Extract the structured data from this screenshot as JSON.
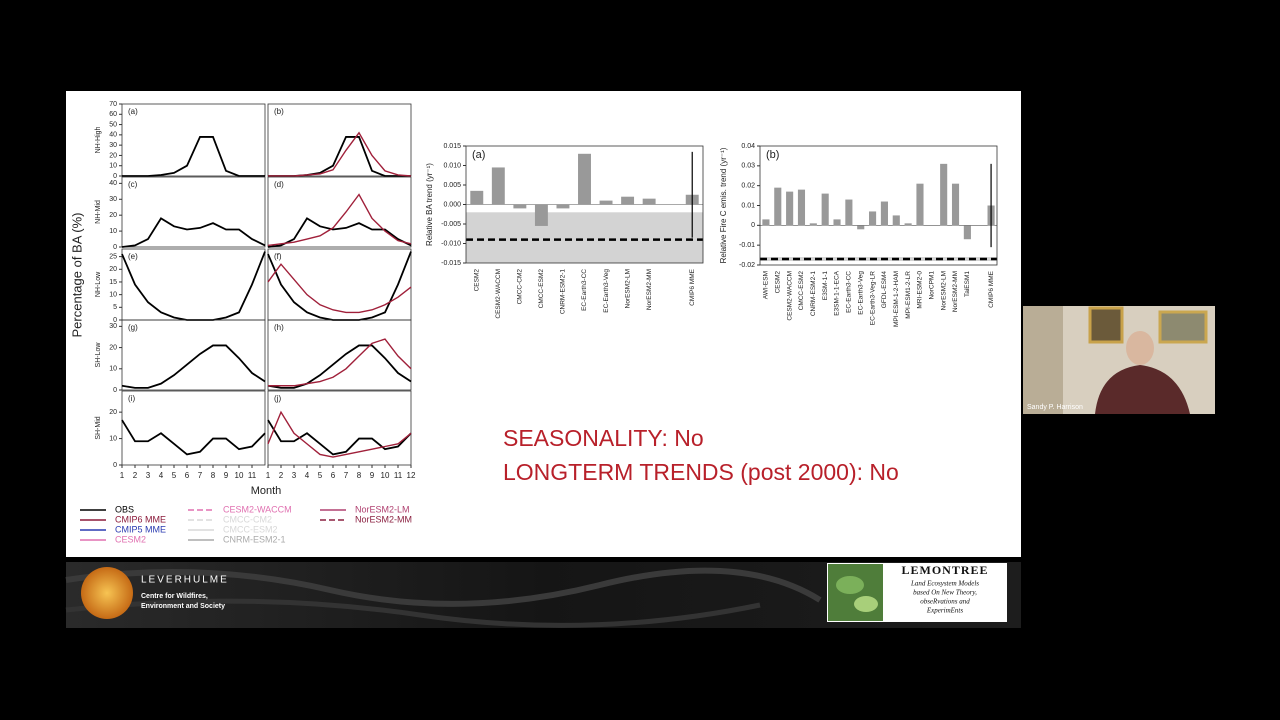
{
  "chart_data": [
    {
      "type": "line",
      "title": "(a)",
      "x": [
        1,
        2,
        3,
        4,
        5,
        6,
        7,
        8,
        9,
        10,
        11,
        12
      ],
      "xlim": [
        1,
        12
      ],
      "ylim": [
        0,
        70
      ],
      "yticks": [
        0,
        10,
        20,
        30,
        40,
        50,
        60,
        70
      ],
      "series": [
        {
          "color": "#000000",
          "values": [
            0,
            0,
            0,
            1,
            3,
            10,
            38,
            38,
            5,
            0,
            0,
            0
          ]
        }
      ]
    },
    {
      "type": "line",
      "title": "(b)",
      "x": [
        1,
        2,
        3,
        4,
        5,
        6,
        7,
        8,
        9,
        10,
        11,
        12
      ],
      "xlim": [
        1,
        12
      ],
      "ylim": [
        0,
        70
      ],
      "series": [
        {
          "color": "#000000",
          "values": [
            0,
            0,
            0,
            1,
            3,
            10,
            38,
            38,
            5,
            0,
            0,
            0
          ]
        },
        {
          "color": "#a0203a",
          "values": [
            0,
            0,
            0,
            1,
            2,
            6,
            25,
            42,
            20,
            5,
            1,
            0
          ]
        }
      ]
    },
    {
      "type": "line",
      "title": "(c)",
      "x": [
        1,
        2,
        3,
        4,
        5,
        6,
        7,
        8,
        9,
        10,
        11,
        12
      ],
      "xlim": [
        1,
        12
      ],
      "ylim": [
        0,
        44
      ],
      "yticks": [
        0,
        10,
        20,
        30,
        40
      ],
      "series": [
        {
          "color": "#000000",
          "values": [
            0,
            1,
            5,
            18,
            13,
            11,
            12,
            15,
            11,
            11,
            5,
            1
          ]
        }
      ]
    },
    {
      "type": "line",
      "title": "(d)",
      "x": [
        1,
        2,
        3,
        4,
        5,
        6,
        7,
        8,
        9,
        10,
        11,
        12
      ],
      "xlim": [
        1,
        12
      ],
      "ylim": [
        0,
        44
      ],
      "series": [
        {
          "color": "#000000",
          "values": [
            0,
            1,
            5,
            18,
            13,
            11,
            12,
            15,
            11,
            11,
            5,
            1
          ]
        },
        {
          "color": "#a0203a",
          "values": [
            1,
            2,
            3,
            5,
            7,
            12,
            22,
            33,
            18,
            10,
            4,
            2
          ]
        }
      ]
    },
    {
      "type": "line",
      "title": "(e)",
      "x": [
        1,
        2,
        3,
        4,
        5,
        6,
        7,
        8,
        9,
        10,
        11,
        12
      ],
      "xlim": [
        1,
        12
      ],
      "ylim": [
        0,
        28
      ],
      "yticks": [
        0,
        5,
        10,
        15,
        20,
        25
      ],
      "series": [
        {
          "color": "#000000",
          "values": [
            26,
            14,
            7,
            3,
            1,
            0,
            0,
            0,
            1,
            3,
            14,
            27
          ]
        }
      ]
    },
    {
      "type": "line",
      "title": "(f)",
      "x": [
        1,
        2,
        3,
        4,
        5,
        6,
        7,
        8,
        9,
        10,
        11,
        12
      ],
      "xlim": [
        1,
        12
      ],
      "ylim": [
        0,
        28
      ],
      "series": [
        {
          "color": "#000000",
          "values": [
            26,
            14,
            7,
            3,
            1,
            0,
            0,
            0,
            1,
            3,
            14,
            27
          ]
        },
        {
          "color": "#a0203a",
          "values": [
            15,
            22,
            16,
            10,
            6,
            4,
            3,
            3,
            4,
            6,
            9,
            13
          ]
        }
      ]
    },
    {
      "type": "line",
      "title": "(g)",
      "x": [
        1,
        2,
        3,
        4,
        5,
        6,
        7,
        8,
        9,
        10,
        11,
        12
      ],
      "xlim": [
        1,
        12
      ],
      "ylim": [
        0,
        33
      ],
      "yticks": [
        0,
        10,
        20,
        30
      ],
      "series": [
        {
          "color": "#000000",
          "values": [
            2,
            1,
            1,
            3,
            7,
            12,
            17,
            21,
            21,
            15,
            8,
            4
          ]
        }
      ]
    },
    {
      "type": "line",
      "title": "(h)",
      "x": [
        1,
        2,
        3,
        4,
        5,
        6,
        7,
        8,
        9,
        10,
        11,
        12
      ],
      "xlim": [
        1,
        12
      ],
      "ylim": [
        0,
        33
      ],
      "series": [
        {
          "color": "#000000",
          "values": [
            2,
            1,
            1,
            3,
            7,
            12,
            17,
            21,
            21,
            15,
            8,
            4
          ]
        },
        {
          "color": "#a0203a",
          "values": [
            2,
            2,
            2,
            3,
            4,
            6,
            10,
            16,
            22,
            24,
            16,
            10
          ]
        }
      ]
    },
    {
      "type": "line",
      "title": "(i)",
      "x": [
        1,
        2,
        3,
        4,
        5,
        6,
        7,
        8,
        9,
        10,
        11,
        12
      ],
      "xlim": [
        1,
        12
      ],
      "ylim": [
        0,
        28
      ],
      "yticks": [
        0,
        10,
        20
      ],
      "xticks": [
        1,
        2,
        3,
        4,
        5,
        6,
        7,
        8,
        9,
        10,
        11
      ],
      "series": [
        {
          "color": "#000000",
          "values": [
            17,
            9,
            9,
            12,
            8,
            4,
            5,
            10,
            10,
            6,
            7,
            12
          ]
        }
      ]
    },
    {
      "type": "line",
      "title": "(j)",
      "x": [
        1,
        2,
        3,
        4,
        5,
        6,
        7,
        8,
        9,
        10,
        11,
        12
      ],
      "xlim": [
        1,
        12
      ],
      "ylim": [
        0,
        28
      ],
      "xticks": [
        1,
        2,
        3,
        4,
        5,
        6,
        7,
        8,
        9,
        10,
        11,
        12
      ],
      "series": [
        {
          "color": "#000000",
          "values": [
            17,
            9,
            9,
            12,
            8,
            4,
            5,
            10,
            10,
            6,
            7,
            12
          ]
        },
        {
          "color": "#a0203a",
          "values": [
            8,
            20,
            12,
            8,
            4,
            3,
            4,
            5,
            6,
            7,
            8,
            12
          ]
        }
      ]
    },
    {
      "type": "bar",
      "title": "(a)",
      "y_label": "Relative BA trend (yr⁻¹)",
      "color": "#999999",
      "categories": [
        "CESM2",
        "CESM2-WACCM",
        "CMCC-CM2",
        "CMCC-ESM2",
        "CNRM-ESM2-1",
        "EC-Earth3-CC",
        "EC-Earth3-Veg",
        "NorESM2-LM",
        "NorESM2-MM",
        null,
        "CMIP6 MME"
      ],
      "values": [
        0.0035,
        0.0095,
        -0.001,
        -0.0055,
        -0.001,
        0.013,
        0.001,
        0.002,
        0.0015,
        null,
        0.0025
      ],
      "errors": [
        null,
        null,
        null,
        null,
        null,
        null,
        null,
        null,
        null,
        null,
        0.011
      ],
      "obs_trend": -0.009,
      "obs_range": [
        -0.015,
        -0.002
      ],
      "ylim": [
        -0.015,
        0.015
      ],
      "yticks": [
        -0.015,
        {
          "value": -0.01,
          "label": "-0.010"
        },
        -0.005,
        {
          "value": 0,
          "label": "0.000"
        },
        0.005,
        {
          "value": 0.01,
          "label": "0.010"
        },
        0.015
      ]
    },
    {
      "type": "bar",
      "title": "(b)",
      "y_label": "Relative Fire C emis. trend (yr⁻¹)",
      "color": "#999999",
      "categories": [
        "AWI-ESM",
        "CESM2",
        "CESM2-WACCM",
        "CMCC-ESM2",
        "CNRM-ESM2-1",
        "E3SM-1-1",
        "E3SM-1-1-ECA",
        "EC-Earth3-CC",
        "EC-Earth3-Veg",
        "EC-Earth3-Veg-LR",
        "GFDL-ESM4",
        "MPI-ESM-1-2-HAM",
        "MPI-ESM1-2-LR",
        "MRI-ESM2-0",
        "NorCPM1",
        "NorESM2-LM",
        "NorESM2-MM",
        "TaiESM1",
        null,
        "CMIP6 MME"
      ],
      "values": [
        0.003,
        0.019,
        0.017,
        0.018,
        0.001,
        0.016,
        0.003,
        0.013,
        -0.002,
        0.007,
        0.012,
        0.005,
        0.001,
        0.021,
        0,
        0.031,
        0.021,
        -0.007,
        null,
        0.01
      ],
      "errors": [
        null,
        null,
        null,
        null,
        null,
        null,
        null,
        null,
        null,
        null,
        null,
        null,
        null,
        null,
        null,
        null,
        null,
        null,
        null,
        0.021
      ],
      "obs_trend": -0.017,
      "obs_range": [
        -0.018,
        -0.016
      ],
      "ylim": [
        -0.02,
        0.04
      ],
      "yticks": [
        -0.02,
        -0.01,
        0,
        0.01,
        0.02,
        0.03,
        0.04
      ]
    }
  ],
  "seasonal": {
    "y_label": "Percentage of BA (%)",
    "x_label": "Month",
    "rows": [
      "NH-High",
      "NH-Mid",
      "NH-Low",
      "SH-Low",
      "SH-Mid"
    ],
    "legend": [
      {
        "name": "OBS",
        "color": "#000000",
        "text_color": "#000000"
      },
      {
        "name": "CMIP6 MME",
        "color": "#8b1a3a",
        "text_color": "#8b1a3a"
      },
      {
        "name": "CMIP5 MME",
        "color": "#2a3ab0",
        "text_color": "#2a3ab0"
      },
      {
        "name": "CESM2",
        "color": "#e070b0",
        "text_color": "#e070b0"
      },
      {
        "name": "CESM2-WACCM",
        "color": "#e070b0",
        "text_color": "#e070b0",
        "dash": true
      },
      {
        "name": "CMCC-CM2",
        "color": "#d8d8d8",
        "text_color": "#d8d8d8",
        "dash": true
      },
      {
        "name": "CMCC-ESM2",
        "color": "#d8d8d8",
        "text_color": "#d8d8d8"
      },
      {
        "name": "CNRM-ESM2-1",
        "color": "#aaaaaa",
        "text_color": "#aaaaaa"
      },
      {
        "name": "NorESM2-LM",
        "color": "#b04070",
        "text_color": "#b04070"
      },
      {
        "name": "NorESM2-MM",
        "color": "#8b2040",
        "text_color": "#8b2040",
        "dash": true
      }
    ]
  },
  "slide": {
    "conclusions": [
      "SEASONALITY: No",
      "LONGTERM TRENDS (post 2000): No"
    ]
  },
  "banner": {
    "leverhulme": "LEVERHULME",
    "centre": [
      "Centre for Wildfires,",
      "Environment and Society"
    ],
    "lemontree": "LEMONTREE",
    "lemontree_sub": [
      "Land Ecosystem Models",
      "based On New Theory,",
      "obseRvations and",
      "ExperimEnts"
    ]
  },
  "video": {
    "participant": "Sandy P. Harrison"
  }
}
